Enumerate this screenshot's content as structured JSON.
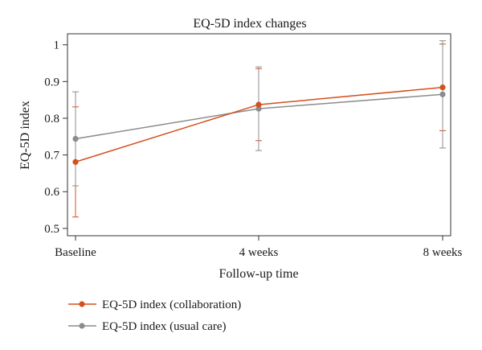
{
  "chart_data": {
    "type": "line",
    "title": "EQ-5D index changes",
    "xlabel": "Follow-up time",
    "ylabel": "EQ-5D index",
    "categories": [
      "Baseline",
      "4 weeks",
      "8 weeks"
    ],
    "ylim": [
      0.48,
      1.03
    ],
    "yticks": [
      0.5,
      0.6,
      0.7,
      0.8,
      0.9,
      1
    ],
    "ytick_labels": [
      "0.5",
      "0.6",
      "0.7",
      "0.8",
      "0.9",
      "1"
    ],
    "grid": false,
    "legend_position": "bottom-left, below plot",
    "series": [
      {
        "name": "EQ-5D index (collaboration)",
        "color": "#d4501e",
        "values": [
          0.681,
          0.837,
          0.884
        ],
        "error_low": [
          0.531,
          0.739,
          0.766
        ],
        "error_high": [
          0.831,
          0.935,
          1.002
        ]
      },
      {
        "name": "EQ-5D index (usual care)",
        "color": "#8c8c8c",
        "values": [
          0.744,
          0.826,
          0.865
        ],
        "error_low": [
          0.616,
          0.712,
          0.719
        ],
        "error_high": [
          0.872,
          0.94,
          1.011
        ]
      }
    ]
  }
}
